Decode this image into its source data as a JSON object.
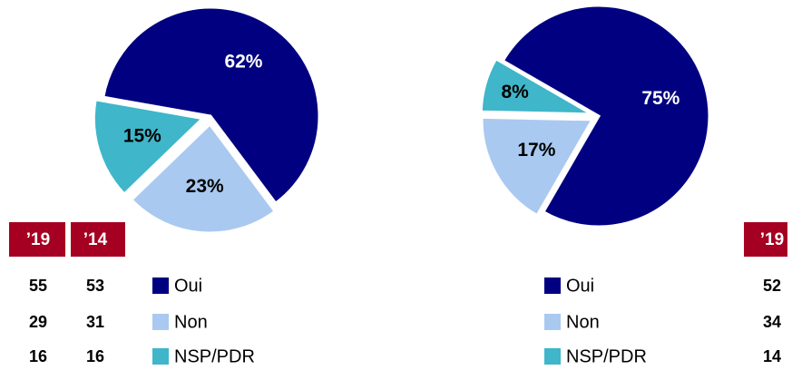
{
  "chart_data": [
    {
      "type": "pie",
      "categories": [
        "Oui",
        "Non",
        "NSP/PDR"
      ],
      "values": [
        62,
        23,
        15
      ],
      "value_labels": [
        "62%",
        "23%",
        "15%"
      ],
      "colors": [
        "#000080",
        "#a9c9f0",
        "#3fb6c9"
      ],
      "start_angle": -80
    },
    {
      "type": "pie",
      "categories": [
        "Oui",
        "Non",
        "NSP/PDR"
      ],
      "values": [
        75,
        17,
        8
      ],
      "value_labels": [
        "75%",
        "17%",
        "8%"
      ],
      "colors": [
        "#000080",
        "#a9c9f0",
        "#3fb6c9"
      ],
      "start_angle": -60
    }
  ],
  "tables": [
    {
      "headers": [
        "’19",
        "’14"
      ],
      "rows": [
        [
          55,
          53
        ],
        [
          29,
          31
        ],
        [
          16,
          16
        ]
      ]
    },
    {
      "headers": [
        "’19"
      ],
      "rows": [
        [
          52
        ],
        [
          34
        ],
        [
          14
        ]
      ]
    }
  ]
}
